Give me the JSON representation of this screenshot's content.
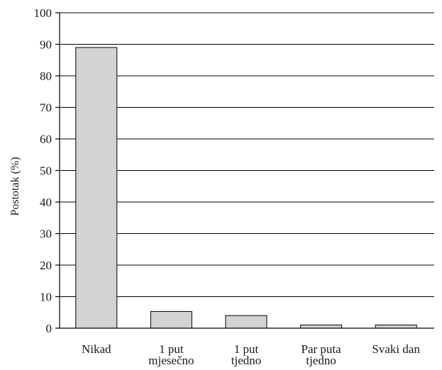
{
  "chart_data": {
    "type": "bar",
    "categories": [
      [
        "Nikad"
      ],
      [
        "1 put",
        "mjesečno"
      ],
      [
        "1 put",
        "tjedno"
      ],
      [
        "Par puta",
        "tjedno"
      ],
      [
        "Svaki dan"
      ]
    ],
    "values": [
      89,
      5.3,
      4.0,
      1.0,
      1.0
    ],
    "ylabel": "Postotak (%)",
    "xlabel": "",
    "ylim": [
      0,
      100
    ],
    "yticks": [
      0,
      10,
      20,
      30,
      40,
      50,
      60,
      70,
      80,
      90,
      100
    ],
    "grid": true,
    "bar_color": "#d3d3d3",
    "legend": "none"
  }
}
